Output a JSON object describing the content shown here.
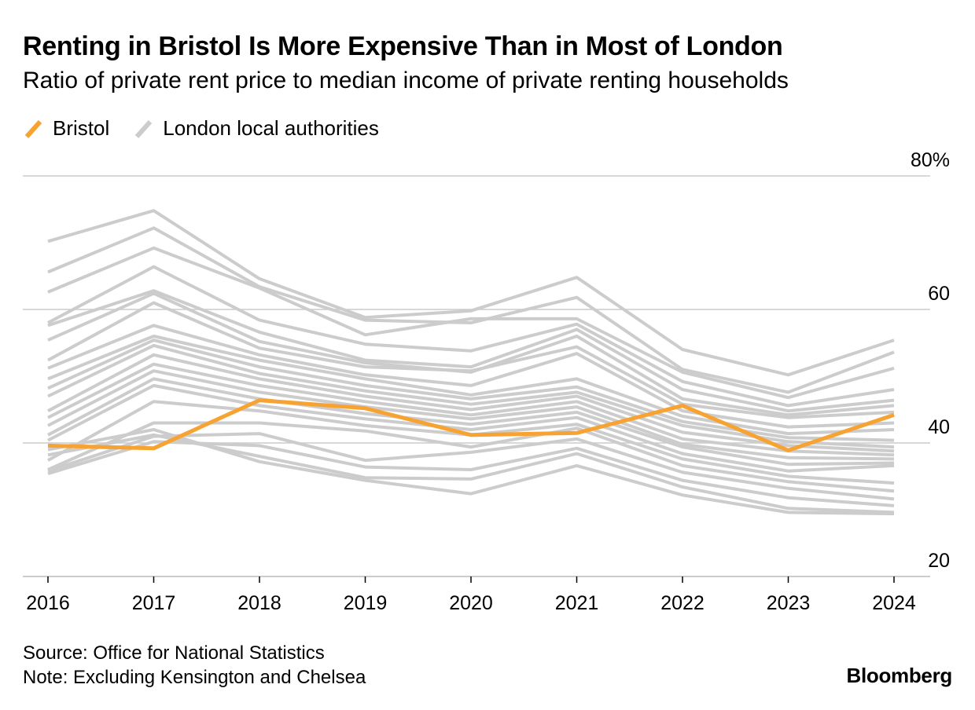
{
  "header": {
    "title": "Renting in Bristol Is More Expensive Than in Most of London",
    "subtitle": "Ratio of private rent price to median income of private renting households"
  },
  "legend": [
    {
      "label": "Bristol",
      "color": "#f7a333"
    },
    {
      "label": "London local authorities",
      "color": "#cccccc"
    }
  ],
  "footer": {
    "source": "Source: Office for National Statistics",
    "note": "Note: Excluding Kensington and Chelsea",
    "brand": "Bloomberg"
  },
  "chart_data": {
    "type": "line",
    "x": [
      2016,
      2017,
      2018,
      2019,
      2020,
      2021,
      2022,
      2023,
      2024
    ],
    "x_tick_labels": [
      "2016",
      "2017",
      "2018",
      "2019",
      "2020",
      "2021",
      "2022",
      "2023",
      "2024"
    ],
    "ylim": [
      20,
      80
    ],
    "y_ticks": [
      20,
      40,
      60,
      80
    ],
    "y_tick_labels": [
      "20",
      "40",
      "60",
      "80%"
    ],
    "grid": true,
    "colors": {
      "highlight": "#f7a333",
      "background_series": "#cccccc",
      "grid": "#cccccc"
    },
    "series": [
      {
        "name": "Bristol",
        "highlight": true,
        "values": [
          39.6,
          39.2,
          46.4,
          45.2,
          41.2,
          41.5,
          45.6,
          38.9,
          44.2
        ]
      },
      {
        "values": [
          70.2,
          74.8,
          64.6,
          58.8,
          59.8,
          64.8,
          54.0,
          50.2,
          55.4
        ]
      },
      {
        "values": [
          65.6,
          72.2,
          63.4,
          58.4,
          58.0,
          61.8,
          51.0,
          47.6,
          53.6
        ]
      },
      {
        "values": [
          62.6,
          69.2,
          63.2,
          56.2,
          58.6,
          58.6,
          50.6,
          46.8,
          51.2
        ]
      },
      {
        "values": [
          58.0,
          66.4,
          58.4,
          54.8,
          53.8,
          57.8,
          49.2,
          45.6,
          48.0
        ]
      },
      {
        "values": [
          57.6,
          62.8,
          56.6,
          52.4,
          51.4,
          57.0,
          48.0,
          44.8,
          46.4
        ]
      },
      {
        "values": [
          55.4,
          62.4,
          55.2,
          52.0,
          50.6,
          56.0,
          46.6,
          44.2,
          45.6
        ]
      },
      {
        "values": [
          52.4,
          61.0,
          54.2,
          51.4,
          50.8,
          54.4,
          45.8,
          43.8,
          44.6
        ]
      },
      {
        "values": [
          51.2,
          57.6,
          53.2,
          50.2,
          48.6,
          53.4,
          44.8,
          42.4,
          43.0
        ]
      },
      {
        "values": [
          49.6,
          56.0,
          52.4,
          49.6,
          47.2,
          49.6,
          44.0,
          41.4,
          42.0
        ]
      },
      {
        "values": [
          48.2,
          55.4,
          51.4,
          48.6,
          46.6,
          48.4,
          43.2,
          40.8,
          40.4
        ]
      },
      {
        "values": [
          47.0,
          54.6,
          50.4,
          47.8,
          45.8,
          47.6,
          42.6,
          40.2,
          39.4
        ]
      },
      {
        "values": [
          44.8,
          53.2,
          49.6,
          47.0,
          45.0,
          47.0,
          41.6,
          39.6,
          38.8
        ]
      },
      {
        "values": [
          43.8,
          51.8,
          48.6,
          46.2,
          44.2,
          46.2,
          40.6,
          38.8,
          38.2
        ]
      },
      {
        "values": [
          42.6,
          50.8,
          47.6,
          45.4,
          43.6,
          45.4,
          39.8,
          37.8,
          37.6
        ]
      },
      {
        "values": [
          41.2,
          49.6,
          46.6,
          44.4,
          42.8,
          44.6,
          39.4,
          36.8,
          37.0
        ]
      },
      {
        "values": [
          40.4,
          48.6,
          45.6,
          43.6,
          42.0,
          43.8,
          38.4,
          35.8,
          36.6
        ]
      },
      {
        "values": [
          37.4,
          46.2,
          44.8,
          42.6,
          41.2,
          42.8,
          37.6,
          35.0,
          34.0
        ]
      },
      {
        "values": [
          36.0,
          43.0,
          43.0,
          41.8,
          39.4,
          42.2,
          36.6,
          34.2,
          32.8
        ]
      },
      {
        "values": [
          35.8,
          41.0,
          41.4,
          37.4,
          38.6,
          40.6,
          35.6,
          33.2,
          31.6
        ]
      },
      {
        "values": [
          35.4,
          40.2,
          39.6,
          36.4,
          36.0,
          39.2,
          34.4,
          31.8,
          30.6
        ]
      },
      {
        "values": [
          38.2,
          41.2,
          38.0,
          34.8,
          34.6,
          38.4,
          33.4,
          30.2,
          29.6
        ]
      },
      {
        "values": [
          39.0,
          42.0,
          37.2,
          34.4,
          32.4,
          36.6,
          32.2,
          29.6,
          29.4
        ]
      }
    ]
  }
}
